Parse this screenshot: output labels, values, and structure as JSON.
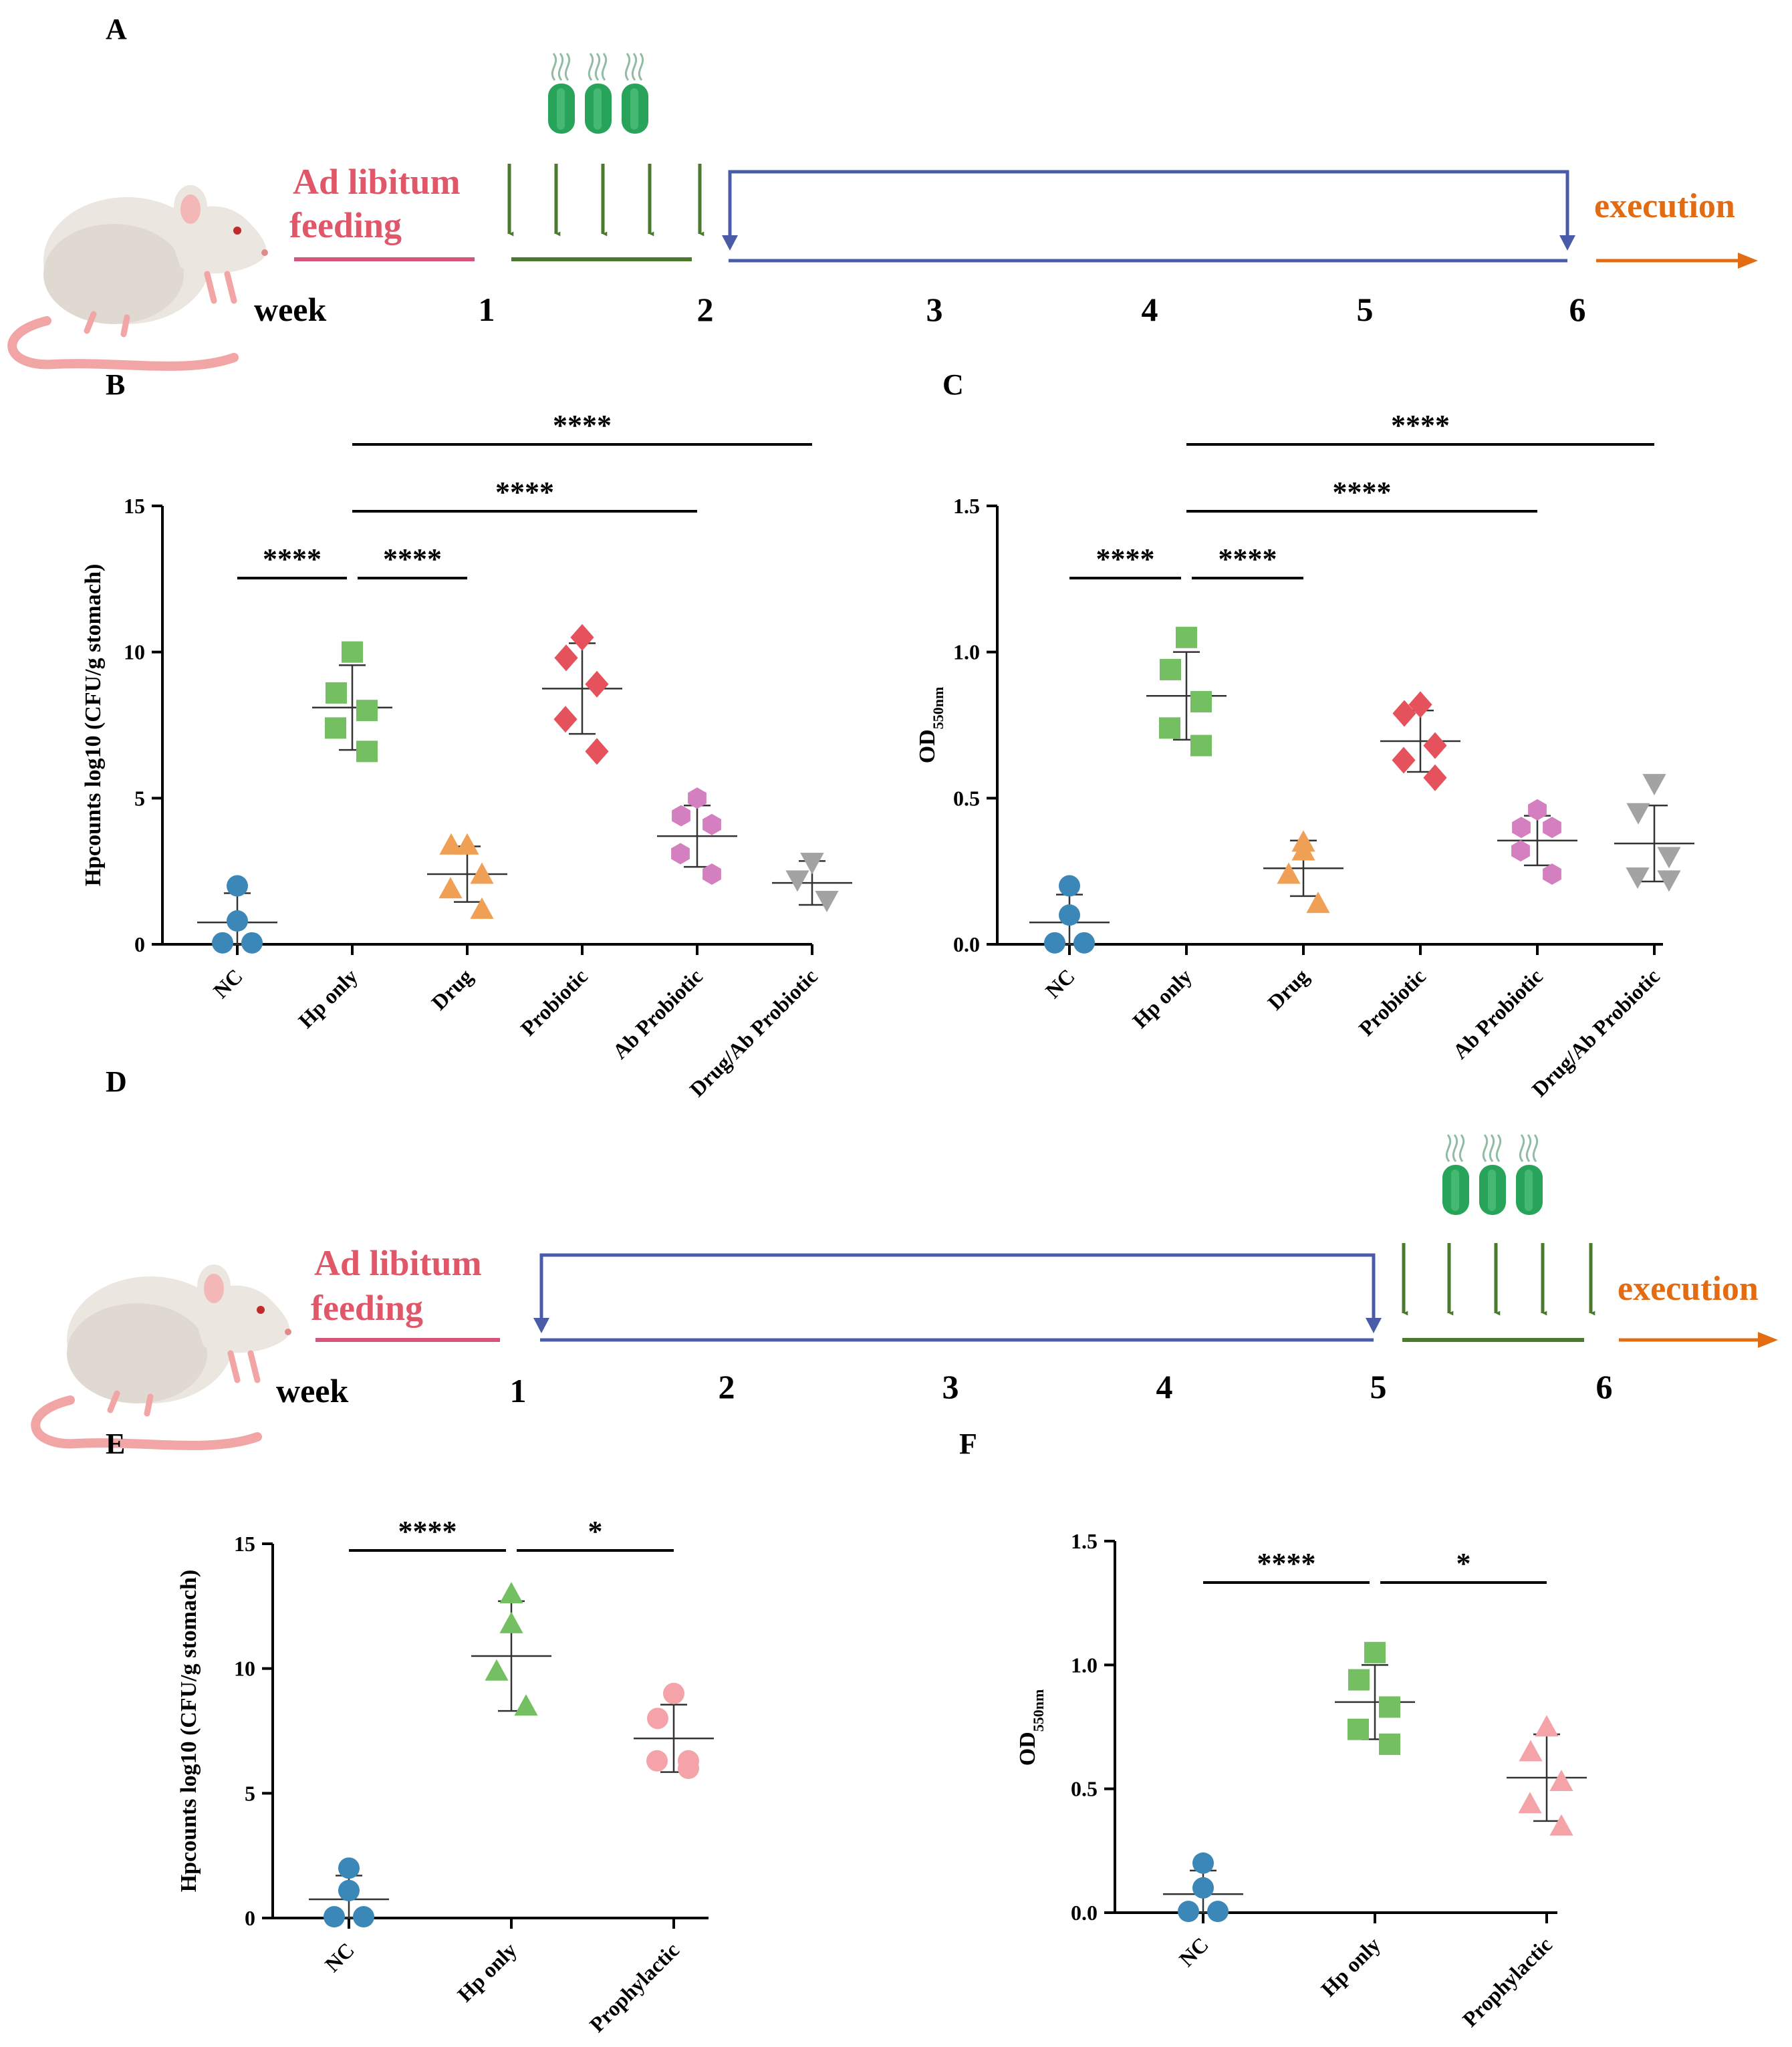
{
  "panel_labels": [
    "A",
    "B",
    "C",
    "D",
    "E",
    "F"
  ],
  "timelines": [
    {
      "id": "A",
      "feeding_label_1": "Ad libitum",
      "feeding_label_2": "feeding",
      "week_label": "week",
      "weeks": [
        "1",
        "2",
        "3",
        "4",
        "5",
        "6"
      ],
      "end_label": "execution",
      "infection_after_week": "1",
      "treatment_weeks": [
        "2",
        "6"
      ]
    },
    {
      "id": "D",
      "feeding_label_1": "Ad libitum",
      "feeding_label_2": "feeding",
      "week_label": "week",
      "weeks": [
        "1",
        "2",
        "3",
        "4",
        "5",
        "6"
      ],
      "end_label": "execution",
      "treatment_weeks": [
        "1",
        "5"
      ],
      "infection_after_week": "5"
    }
  ],
  "colors": {
    "feeding_text": "#e0576a",
    "feeding_line": "#d6547a",
    "infection": "#4a7a2b",
    "treatment": "#4a5ca8",
    "execution": "#e36c12",
    "bacteria": "#27a35a"
  },
  "chart_data": [
    {
      "panel": "B",
      "type": "scatter",
      "ylabel": "Hpcounts log10 (CFU/g stomach)",
      "ylim": [
        0,
        15
      ],
      "yticks": [
        "0",
        "5",
        "10",
        "15"
      ],
      "categories": [
        "NC",
        "Hp only",
        "Drug",
        "Probiotic",
        "Ab Probiotic",
        "Drug/Ab Probiotic"
      ],
      "groups": [
        {
          "name": "NC",
          "color": "#3a87b8",
          "marker": "circle",
          "points": [
            2.0,
            0.8,
            0.05,
            0.05
          ],
          "mean": 0.75,
          "sd": 1.0
        },
        {
          "name": "Hp only",
          "color": "#74bf62",
          "marker": "square",
          "points": [
            10.0,
            8.6,
            8.0,
            7.4,
            6.6
          ],
          "mean": 8.1,
          "sd": 1.45
        },
        {
          "name": "Drug",
          "color": "#f0a055",
          "marker": "triangle",
          "points": [
            3.4,
            3.4,
            2.4,
            1.9,
            1.2
          ],
          "mean": 2.4,
          "sd": 0.95
        },
        {
          "name": "Probiotic",
          "color": "#e5525b",
          "marker": "diamond",
          "points": [
            10.5,
            9.8,
            8.9,
            7.7,
            6.6
          ],
          "mean": 8.75,
          "sd": 1.55
        },
        {
          "name": "Ab Probiotic",
          "color": "#d47fbf",
          "marker": "hexagon",
          "points": [
            5.0,
            4.4,
            4.1,
            3.1,
            2.4
          ],
          "mean": 3.7,
          "sd": 1.05
        },
        {
          "name": "Drug/Ab Probiotic",
          "color": "#a3a3a3",
          "marker": "triangle-down",
          "points": [
            2.8,
            2.8,
            2.2,
            1.5
          ],
          "mean": 2.1,
          "sd": 0.75
        }
      ],
      "significance": [
        {
          "from": 0,
          "to": 1,
          "label": "****",
          "level": 1
        },
        {
          "from": 1,
          "to": 2,
          "label": "****",
          "level": 1
        },
        {
          "from": 1,
          "to": 4,
          "label": "****",
          "level": 2
        },
        {
          "from": 1,
          "to": 5,
          "label": "****",
          "level": 3
        }
      ]
    },
    {
      "panel": "C",
      "type": "scatter",
      "ylabel": "OD",
      "ylabel_sub": "550nm",
      "ylim": [
        0,
        1.5
      ],
      "yticks": [
        "0.0",
        "0.5",
        "1.0",
        "1.5"
      ],
      "categories": [
        "NC",
        "Hp only",
        "Drug",
        "Probiotic",
        "Ab Probiotic",
        "Drug/Ab Probiotic"
      ],
      "groups": [
        {
          "name": "NC",
          "color": "#3a87b8",
          "marker": "circle",
          "points": [
            0.2,
            0.1,
            0.005,
            0.005
          ],
          "mean": 0.075,
          "sd": 0.095
        },
        {
          "name": "Hp only",
          "color": "#74bf62",
          "marker": "square",
          "points": [
            1.05,
            0.94,
            0.83,
            0.74,
            0.68
          ],
          "mean": 0.85,
          "sd": 0.15
        },
        {
          "name": "Drug",
          "color": "#f0a055",
          "marker": "triangle",
          "points": [
            0.35,
            0.32,
            0.24,
            0.14
          ],
          "mean": 0.26,
          "sd": 0.095
        },
        {
          "name": "Probiotic",
          "color": "#e5525b",
          "marker": "diamond",
          "points": [
            0.82,
            0.79,
            0.68,
            0.63,
            0.57
          ],
          "mean": 0.695,
          "sd": 0.105
        },
        {
          "name": "Ab Probiotic",
          "color": "#d47fbf",
          "marker": "hexagon",
          "points": [
            0.46,
            0.4,
            0.4,
            0.32,
            0.24
          ],
          "mean": 0.355,
          "sd": 0.085
        },
        {
          "name": "Drug/Ab Probiotic",
          "color": "#a3a3a3",
          "marker": "triangle-down",
          "points": [
            0.55,
            0.45,
            0.3,
            0.23,
            0.22
          ],
          "mean": 0.345,
          "sd": 0.13
        }
      ],
      "significance": [
        {
          "from": 0,
          "to": 1,
          "label": "****",
          "level": 1
        },
        {
          "from": 1,
          "to": 2,
          "label": "****",
          "level": 1
        },
        {
          "from": 1,
          "to": 4,
          "label": "****",
          "level": 2
        },
        {
          "from": 1,
          "to": 5,
          "label": "****",
          "level": 3
        }
      ]
    },
    {
      "panel": "E",
      "type": "scatter",
      "ylabel": "Hpcounts log10 (CFU/g stomach)",
      "ylim": [
        0,
        15
      ],
      "yticks": [
        "0",
        "5",
        "10",
        "15"
      ],
      "categories": [
        "NC",
        "Hp only",
        "Prophylactic"
      ],
      "groups": [
        {
          "name": "NC",
          "color": "#3a87b8",
          "marker": "circle",
          "points": [
            2.0,
            1.1,
            0.05,
            0.05
          ],
          "mean": 0.75,
          "sd": 0.95
        },
        {
          "name": "Hp only",
          "color": "#74bf62",
          "marker": "triangle",
          "points": [
            13.0,
            11.8,
            9.9,
            8.5
          ],
          "mean": 10.5,
          "sd": 2.2
        },
        {
          "name": "Prophylactic",
          "color": "#f4a4a8",
          "marker": "circle",
          "points": [
            9.0,
            8.0,
            6.3,
            6.3,
            6.0
          ],
          "mean": 7.2,
          "sd": 1.35
        }
      ],
      "significance": [
        {
          "from": 0,
          "to": 1,
          "label": "****",
          "level": 1
        },
        {
          "from": 1,
          "to": 2,
          "label": "*",
          "level": 1
        }
      ]
    },
    {
      "panel": "F",
      "type": "scatter",
      "ylabel": "OD",
      "ylabel_sub": "550nm",
      "ylim": [
        0,
        1.5
      ],
      "yticks": [
        "0.0",
        "0.5",
        "1.0",
        "1.5"
      ],
      "categories": [
        "NC",
        "Hp only",
        "Prophylactic"
      ],
      "groups": [
        {
          "name": "NC",
          "color": "#3a87b8",
          "marker": "circle",
          "points": [
            0.2,
            0.1,
            0.005,
            0.005
          ],
          "mean": 0.075,
          "sd": 0.095
        },
        {
          "name": "Hp only",
          "color": "#74bf62",
          "marker": "square",
          "points": [
            1.05,
            0.94,
            0.83,
            0.74,
            0.68
          ],
          "mean": 0.85,
          "sd": 0.15
        },
        {
          "name": "Prophylactic",
          "color": "#f4a4a8",
          "marker": "triangle",
          "points": [
            0.75,
            0.65,
            0.53,
            0.44,
            0.35
          ],
          "mean": 0.545,
          "sd": 0.175
        }
      ],
      "significance": [
        {
          "from": 0,
          "to": 1,
          "label": "****",
          "level": 1
        },
        {
          "from": 1,
          "to": 2,
          "label": "*",
          "level": 1
        }
      ]
    }
  ]
}
